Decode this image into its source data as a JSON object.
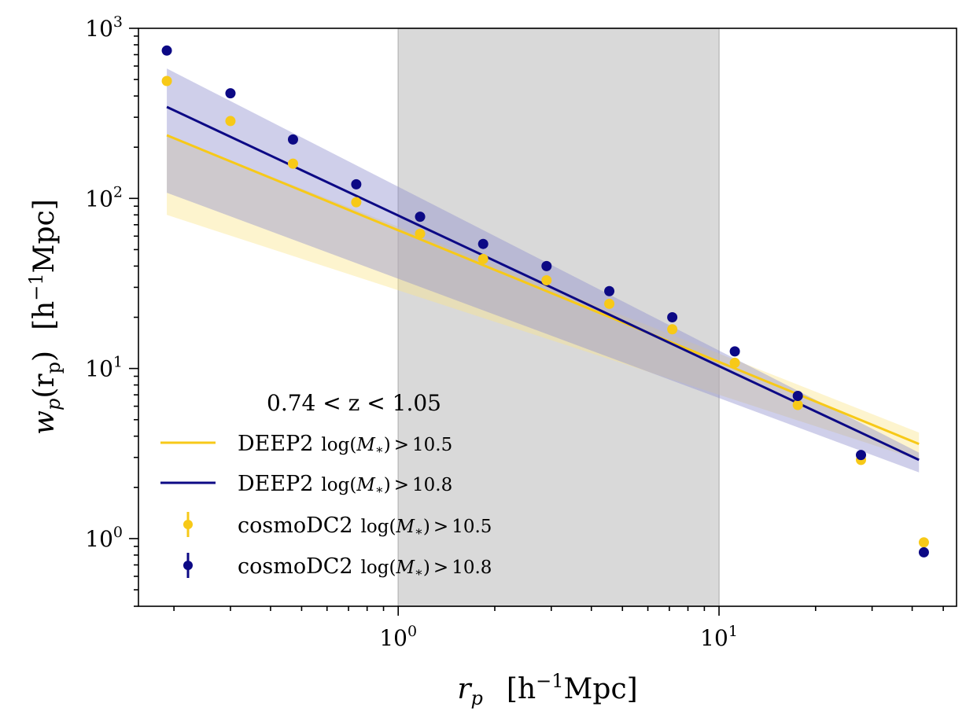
{
  "chart_data": {
    "type": "scatter",
    "title": "",
    "xscale": "log",
    "yscale": "log",
    "xlim": [
      0.155,
      55
    ],
    "ylim": [
      0.4,
      1000
    ],
    "xlabel": {
      "main": "r",
      "sub": "p",
      "units": "[h",
      "units_sup": "−1",
      "units_end": "Mpc]"
    },
    "ylabel": {
      "main": "w",
      "sub": "p",
      "arg": "(r",
      "arg_sub": "p",
      "arg_end": ")",
      "units": "[h",
      "units_sup": "−1",
      "units_end": "Mpc]"
    },
    "xticks": [
      {
        "value": 1,
        "base": "10",
        "exp": "0"
      },
      {
        "value": 10,
        "base": "10",
        "exp": "1"
      }
    ],
    "yticks": [
      {
        "value": 1,
        "base": "10",
        "exp": "0"
      },
      {
        "value": 10,
        "base": "10",
        "exp": "1"
      },
      {
        "value": 100,
        "base": "10",
        "exp": "2"
      },
      {
        "value": 1000,
        "base": "10",
        "exp": "3"
      }
    ],
    "shaded_region": {
      "x_range": [
        1,
        10
      ],
      "color": "#d9d9d9"
    },
    "legend_title": "0.74 < z < 1.05",
    "series": [
      {
        "name": "DEEP2 log(M*) > 10.5",
        "label_main": "DEEP2",
        "kind": "line",
        "color": "#f7c918",
        "band_color": "#fbe58a",
        "x": [
          0.19,
          42
        ],
        "y": [
          235,
          3.6
        ],
        "band_upper": [
          235,
          4.2
        ],
        "band_lower": [
          80,
          2.9
        ]
      },
      {
        "name": "DEEP2 log(M*) > 10.8",
        "label_main": "DEEP2",
        "kind": "line",
        "color": "#0c0985",
        "band_color": "#8c8ccc",
        "x": [
          0.19,
          42
        ],
        "y": [
          345,
          2.9
        ],
        "band_upper": [
          580,
          3.2
        ],
        "band_lower": [
          108,
          2.45
        ]
      },
      {
        "name": "cosmoDC2 log(M*) > 10.5",
        "label_main": "cosmoDC2",
        "kind": "points",
        "color": "#f7c918",
        "x": [
          0.19,
          0.3,
          0.47,
          0.74,
          1.17,
          1.84,
          2.9,
          4.55,
          7.15,
          11.2,
          17.6,
          27.7,
          43.5
        ],
        "y": [
          490,
          285,
          160,
          95,
          62,
          44,
          33,
          24,
          17,
          10.8,
          6.1,
          2.9,
          0.95
        ]
      },
      {
        "name": "cosmoDC2 log(M*) > 10.8",
        "label_main": "cosmoDC2",
        "kind": "points",
        "color": "#0c0985",
        "x": [
          0.19,
          0.3,
          0.47,
          0.74,
          1.17,
          1.84,
          2.9,
          4.55,
          7.15,
          11.2,
          17.6,
          27.7,
          43.5
        ],
        "y": [
          740,
          415,
          222,
          121,
          78,
          54,
          40,
          28.5,
          20,
          12.6,
          6.9,
          3.1,
          0.83
        ]
      }
    ],
    "legend_suffix": {
      "log": "log(",
      "var": "M",
      "star": "∗",
      "close": ")",
      "op": ">",
      "v1": "10.5",
      "v2": "10.8"
    }
  }
}
